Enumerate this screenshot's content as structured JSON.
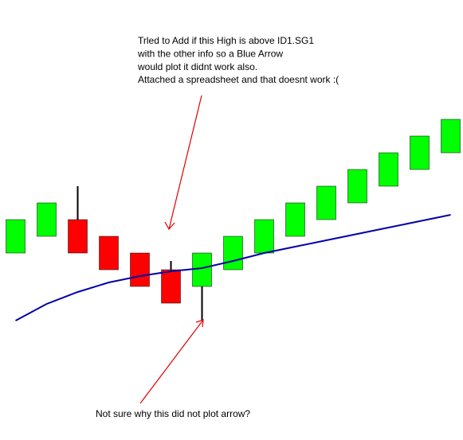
{
  "chart_data": {
    "type": "candlestick",
    "categories": [
      null,
      null,
      null,
      null,
      null,
      null,
      null,
      null,
      null,
      null,
      null,
      null,
      null,
      null,
      null
    ],
    "open": [
      235,
      256,
      277,
      256,
      235,
      214,
      193,
      214,
      235,
      256,
      277,
      298,
      319,
      340,
      361
    ],
    "high": [
      277,
      298,
      319,
      256,
      235,
      225,
      235,
      256,
      277,
      298,
      319,
      340,
      361,
      382,
      403
    ],
    "low": [
      235,
      256,
      235,
      214,
      193,
      172,
      151,
      214,
      235,
      256,
      277,
      298,
      319,
      340,
      361
    ],
    "close": [
      277,
      298,
      235,
      214,
      193,
      172,
      235,
      256,
      277,
      298,
      319,
      340,
      361,
      382,
      403
    ],
    "up_color": "#00ff00",
    "down_color": "#ff0000",
    "wick_color": "#000000",
    "moving_average": {
      "color": "#0000aa",
      "values": [
        150,
        171,
        186,
        198,
        206,
        212,
        216,
        225,
        235,
        243,
        251,
        259,
        267,
        275,
        283
      ]
    },
    "ylim": [
      0,
      553
    ],
    "annotations": [
      {
        "lines": [
          "Trled to Add if this High is above ID1.SG1",
          "with the other info so a Blue Arrow",
          "would plot it didnt work also.",
          "Attached a spreadsheet and that doesnt work :("
        ]
      },
      {
        "lines": [
          "Not sure why this did not plot arrow?"
        ]
      }
    ]
  }
}
